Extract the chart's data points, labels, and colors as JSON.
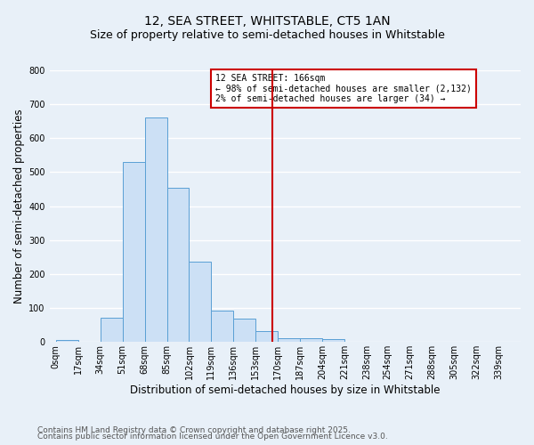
{
  "title": "12, SEA STREET, WHITSTABLE, CT5 1AN",
  "subtitle": "Size of property relative to semi-detached houses in Whitstable",
  "xlabel": "Distribution of semi-detached houses by size in Whitstable",
  "ylabel": "Number of semi-detached properties",
  "footnote1": "Contains HM Land Registry data © Crown copyright and database right 2025.",
  "footnote2": "Contains public sector information licensed under the Open Government Licence v3.0.",
  "bar_left_edges": [
    0,
    17,
    34,
    51,
    68,
    85,
    102,
    119,
    136,
    153,
    170,
    187,
    204,
    221,
    238,
    254,
    271,
    288,
    305,
    322
  ],
  "bar_heights": [
    5,
    0,
    72,
    530,
    660,
    455,
    237,
    93,
    68,
    32,
    10,
    12,
    8,
    0,
    0,
    0,
    0,
    0,
    0,
    0
  ],
  "bin_width": 17,
  "bar_facecolor": "#cce0f5",
  "bar_edgecolor": "#5a9fd4",
  "property_size": 166,
  "vline_color": "#cc0000",
  "annotation_title": "12 SEA STREET: 166sqm",
  "annotation_line1": "← 98% of semi-detached houses are smaller (2,132)",
  "annotation_line2": "2% of semi-detached houses are larger (34) →",
  "annotation_box_color": "#cc0000",
  "annotation_bg": "#ffffff",
  "ylim": [
    0,
    800
  ],
  "yticks": [
    0,
    100,
    200,
    300,
    400,
    500,
    600,
    700,
    800
  ],
  "xtick_labels": [
    "0sqm",
    "17sqm",
    "34sqm",
    "51sqm",
    "68sqm",
    "85sqm",
    "102sqm",
    "119sqm",
    "136sqm",
    "153sqm",
    "170sqm",
    "187sqm",
    "204sqm",
    "221sqm",
    "238sqm",
    "254sqm",
    "271sqm",
    "288sqm",
    "305sqm",
    "322sqm",
    "339sqm"
  ],
  "xtick_positions": [
    0,
    17,
    34,
    51,
    68,
    85,
    102,
    119,
    136,
    153,
    170,
    187,
    204,
    221,
    238,
    254,
    271,
    288,
    305,
    322,
    339
  ],
  "bg_color": "#e8f0f8",
  "plot_bg_color": "#e8f0f8",
  "grid_color": "#ffffff",
  "title_fontsize": 10,
  "subtitle_fontsize": 9,
  "axis_label_fontsize": 8.5,
  "tick_fontsize": 7,
  "footnote_fontsize": 6.5
}
